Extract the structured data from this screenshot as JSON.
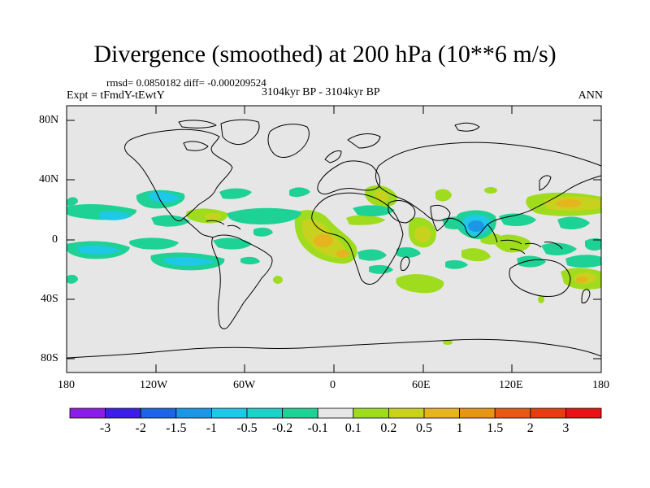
{
  "title": "Divergence (smoothed) at 200 hPa (10**6 m/s)",
  "stats": "rmsd= 0.0850182 diff= -0.000209524",
  "experiment": "Expt = tFmdY-tEwtY",
  "period": "3104kyr BP - 3104kyr BP",
  "season": "ANN",
  "lat_ticks": [
    "80N",
    "40N",
    "0",
    "40S",
    "80S"
  ],
  "lon_ticks": [
    "180",
    "120W",
    "60W",
    "0",
    "60E",
    "120E",
    "180"
  ],
  "colorbar": {
    "labels": [
      "-3",
      "-2",
      "-1.5",
      "-1",
      "-0.5",
      "-0.2",
      "-0.1",
      "0.1",
      "0.2",
      "0.5",
      "1",
      "1.5",
      "2",
      "3"
    ],
    "colors": [
      "#8a1ee6",
      "#3c1ee6",
      "#1e64e6",
      "#1e96e6",
      "#1ec8e6",
      "#1ed2c8",
      "#1ed296",
      "#e6e6e6",
      "#a0dc1e",
      "#c8d21e",
      "#e6b41e",
      "#e69614",
      "#e65a14",
      "#e63c14",
      "#e61414"
    ]
  },
  "map_colors": {
    "ocean_bg": "#e6e6e6",
    "coast": "#000000"
  }
}
